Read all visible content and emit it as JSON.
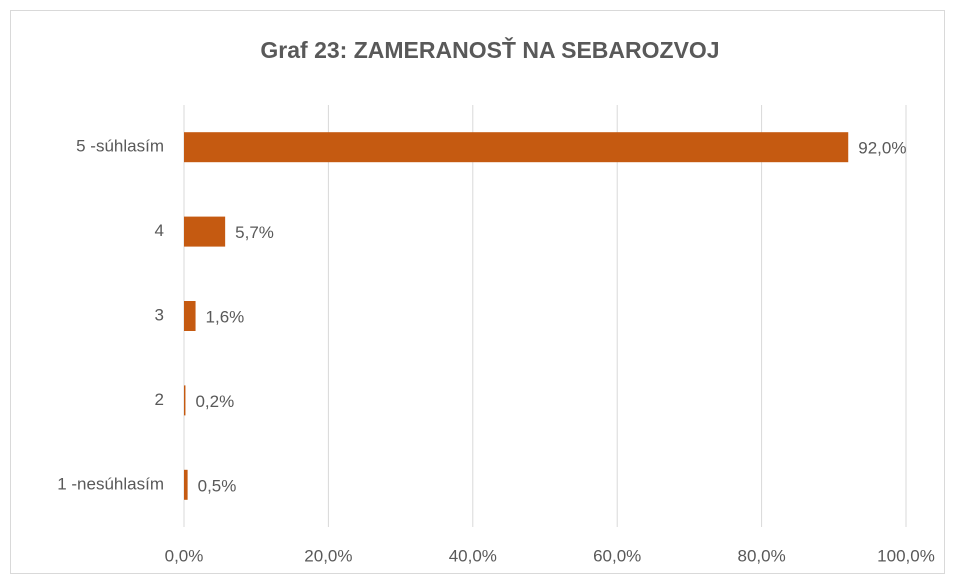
{
  "chart_data": {
    "type": "hbar",
    "title": "Graf 23: ZAMERANOSŤ NA SEBAROZVOJ",
    "categories": [
      "5 -súhlasím",
      "4",
      "3",
      "2",
      "1 -nesúhlasím"
    ],
    "values": [
      92.0,
      5.7,
      1.6,
      0.2,
      0.5
    ],
    "value_labels": [
      "92,0%",
      "5,7%",
      "1,6%",
      "0,2%",
      "0,5%"
    ],
    "color": "#c55a11",
    "xlim": [
      0,
      100
    ],
    "xticks": [
      {
        "value": 0,
        "label": "0,0%"
      },
      {
        "value": 20,
        "label": "20,0%"
      },
      {
        "value": 40,
        "label": "40,0%"
      },
      {
        "value": 60,
        "label": "60,0%"
      },
      {
        "value": 80,
        "label": "80,0%"
      },
      {
        "value": 100,
        "label": "100,0%"
      }
    ],
    "grid": true
  }
}
